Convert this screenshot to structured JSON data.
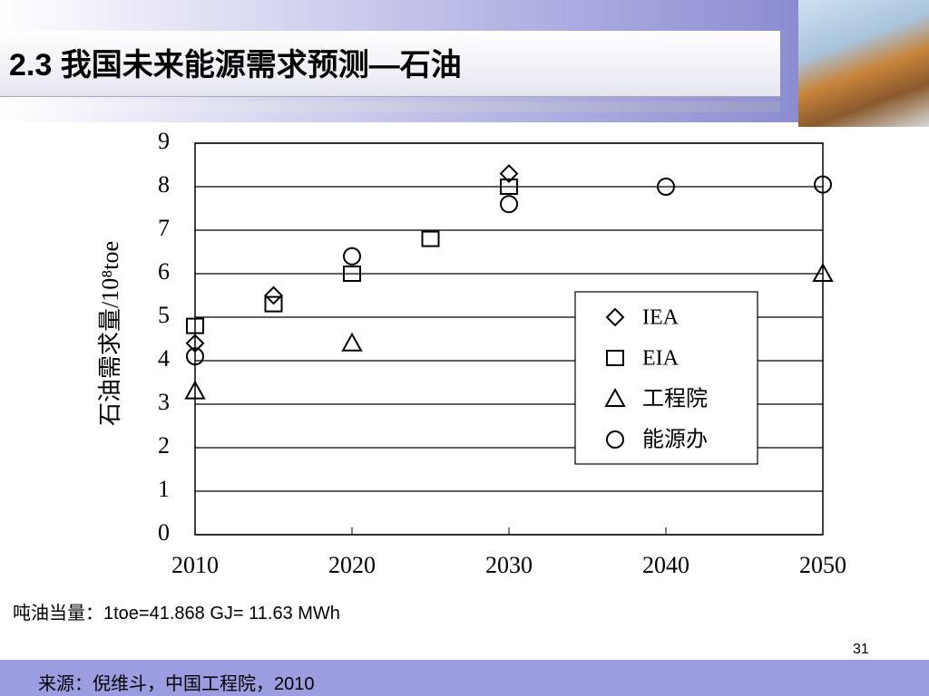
{
  "slide": {
    "title": "2.3 我国未来能源需求预测—石油",
    "note": "吨油当量：1toe=41.868 GJ= 11.63 MWh",
    "page_number": "31",
    "source": "来源：倪维斗，中国工程院，2010"
  },
  "chart_data": {
    "type": "scatter",
    "y_label": "石油需求量/10⁸toe",
    "xlim": [
      2010,
      2050
    ],
    "xticks": [
      2010,
      2020,
      2030,
      2040,
      2050
    ],
    "ylim": [
      0,
      9
    ],
    "yticks": [
      0,
      1,
      2,
      3,
      4,
      5,
      6,
      7,
      8,
      9
    ],
    "grid": true,
    "legend": "right",
    "series": [
      {
        "name": "IEA",
        "marker": "diamond",
        "color": "#000000",
        "x": [
          2010,
          2015,
          2030
        ],
        "values": [
          4.4,
          5.5,
          8.3
        ]
      },
      {
        "name": "EIA",
        "marker": "square",
        "color": "#000000",
        "x": [
          2010,
          2015,
          2020,
          2025,
          2030
        ],
        "values": [
          4.8,
          5.3,
          6.0,
          6.8,
          8.0
        ]
      },
      {
        "name": "工程院",
        "marker": "triangle",
        "color": "#000000",
        "x": [
          2010,
          2020,
          2050
        ],
        "values": [
          3.3,
          4.4,
          6.0
        ]
      },
      {
        "name": "能源办",
        "marker": "circle",
        "color": "#000000",
        "x": [
          2010,
          2020,
          2030,
          2040,
          2050
        ],
        "values": [
          4.1,
          6.4,
          7.6,
          8.0,
          8.05
        ]
      }
    ]
  }
}
